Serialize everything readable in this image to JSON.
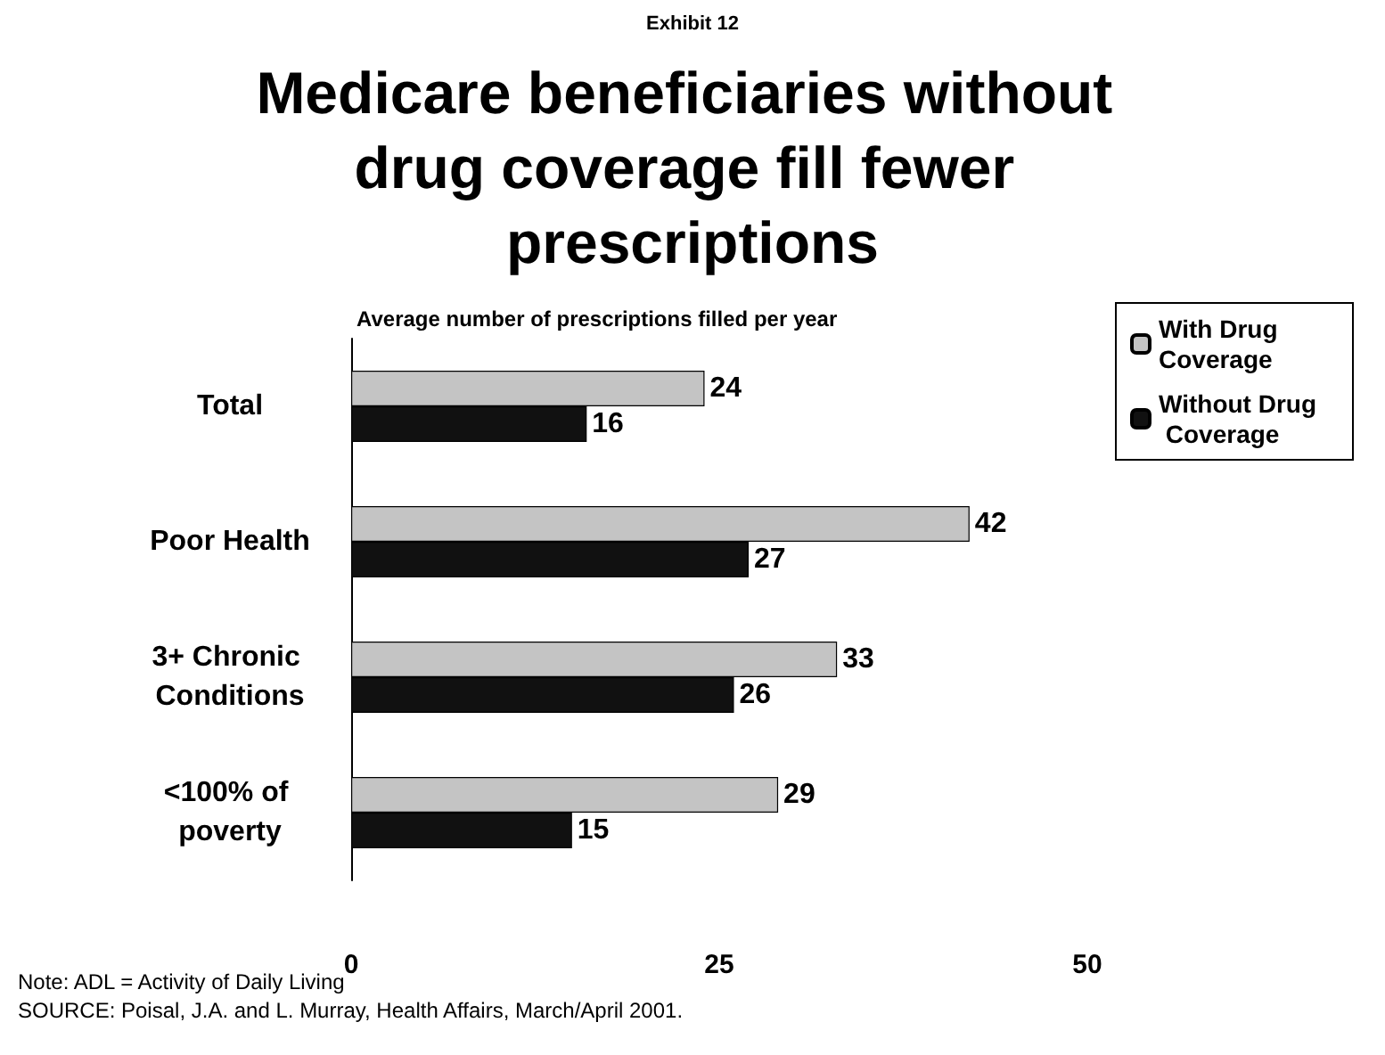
{
  "chart_data": {
    "type": "bar",
    "orientation": "horizontal",
    "title": "Medicare beneficiaries without drug coverage fill fewer prescriptions",
    "subtitle": "Average number of prescriptions filled per year",
    "categories": [
      "Total",
      "Poor Health",
      "3+ Chronic Conditions",
      "<100% of poverty"
    ],
    "series": [
      {
        "name": "With Drug Coverage",
        "color": "#c4c4c4",
        "values": [
          24,
          42,
          33,
          29
        ]
      },
      {
        "name": "Without Drug Coverage",
        "color": "#111111",
        "values": [
          16,
          27,
          26,
          15
        ]
      }
    ],
    "xlim": [
      0,
      50
    ],
    "xticks": [
      0,
      25,
      50
    ],
    "grid": false,
    "legend": "top right",
    "data_labels": true,
    "annotations": [
      "Exhibit 12",
      "Note: ADL = Activity of Daily Living",
      "SOURCE: Poisal, J.A. and L. Murray, Health Affairs, March/April 2001."
    ]
  }
}
